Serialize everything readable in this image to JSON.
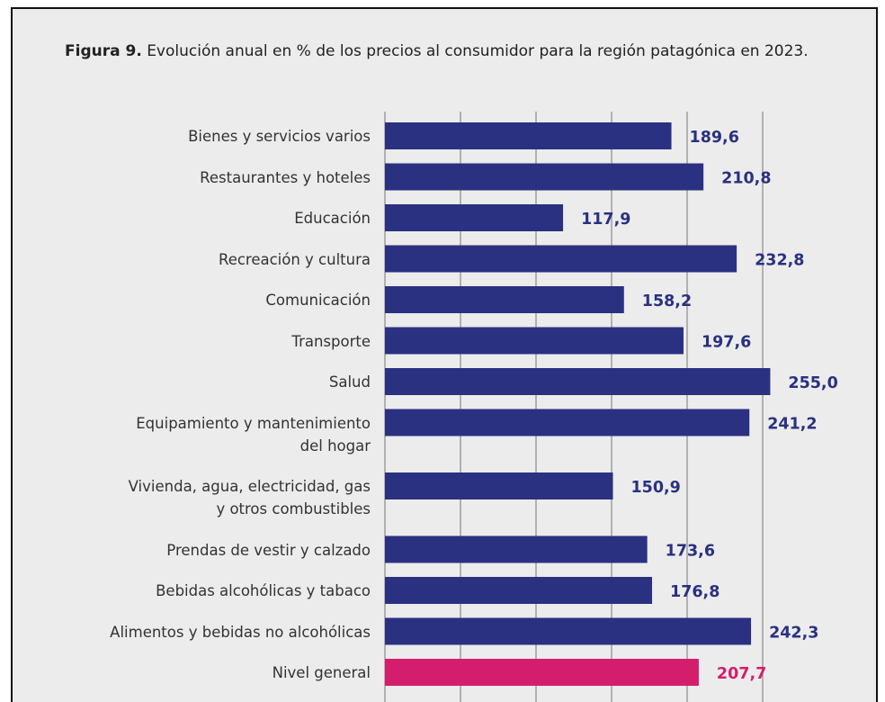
{
  "chart_data": {
    "type": "barh",
    "figure_label": "Figura 9.",
    "title": "Evolución anual en % de los precios al consumidor para la región patagónica en 2023.",
    "categories": [
      "Bienes y servicios varios",
      "Restaurantes y hoteles",
      "Educación",
      "Recreación y cultura",
      "Comunicación",
      "Transporte",
      "Salud",
      "Equipamiento y mantenimiento\ndel hogar",
      "Vivienda, agua, electricidad, gas\ny otros combustibles",
      "Prendas de vestir y calzado",
      "Bebidas alcohólicas y tabaco",
      "Alimentos y bebidas no alcohólicas",
      "Nivel general"
    ],
    "values": [
      189.6,
      210.8,
      117.9,
      232.8,
      158.2,
      197.6,
      255.0,
      241.2,
      150.9,
      173.6,
      176.8,
      242.3,
      207.7
    ],
    "value_labels": [
      "189,6",
      "210,8",
      "117,9",
      "232,8",
      "158,2",
      "197,6",
      "255,0",
      "241,2",
      "150,9",
      "173,6",
      "176,8",
      "242,3",
      "207,7"
    ],
    "colors": [
      "#2a3180",
      "#2a3180",
      "#2a3180",
      "#2a3180",
      "#2a3180",
      "#2a3180",
      "#2a3180",
      "#2a3180",
      "#2a3180",
      "#2a3180",
      "#2a3180",
      "#2a3180",
      "#d41d6d"
    ],
    "xlim": [
      0,
      300
    ],
    "xticks": [
      0,
      50,
      100,
      150,
      200,
      250
    ],
    "grid": true
  }
}
